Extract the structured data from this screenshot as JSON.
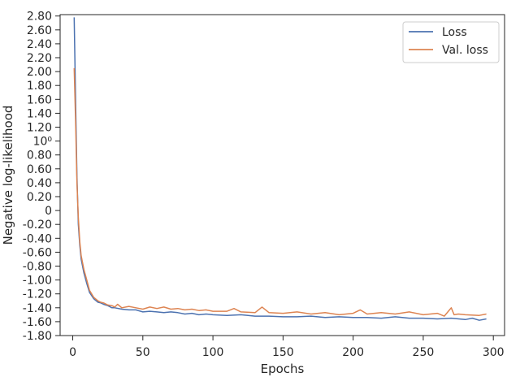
{
  "chart_data": {
    "type": "line",
    "xlabel": "Epochs",
    "ylabel": "Negative log-likelihood",
    "xlim": [
      -9,
      308
    ],
    "ylim": [
      -1.8,
      2.82
    ],
    "x_ticks": [
      {
        "value": 0,
        "label": "0"
      },
      {
        "value": 50,
        "label": "50"
      },
      {
        "value": 100,
        "label": "100"
      },
      {
        "value": 150,
        "label": "150"
      },
      {
        "value": 200,
        "label": "200"
      },
      {
        "value": 250,
        "label": "250"
      },
      {
        "value": 300,
        "label": "300"
      }
    ],
    "y_ticks": [
      {
        "value": 2.8,
        "label": "2.80"
      },
      {
        "value": 2.6,
        "label": "2.60"
      },
      {
        "value": 2.4,
        "label": "2.40"
      },
      {
        "value": 2.2,
        "label": "2.20"
      },
      {
        "value": 2.0,
        "label": "2.00"
      },
      {
        "value": 1.8,
        "label": "1.80"
      },
      {
        "value": 1.6,
        "label": "1.60"
      },
      {
        "value": 1.4,
        "label": "1.40"
      },
      {
        "value": 1.2,
        "label": "1.20"
      },
      {
        "value": 1.0,
        "label": "10⁰"
      },
      {
        "value": 0.8,
        "label": "0.80"
      },
      {
        "value": 0.6,
        "label": "0.60"
      },
      {
        "value": 0.4,
        "label": "0.40"
      },
      {
        "value": 0.2,
        "label": "0.20"
      },
      {
        "value": 0.0,
        "label": "0"
      },
      {
        "value": -0.2,
        "label": "-0.20"
      },
      {
        "value": -0.4,
        "label": "-0.40"
      },
      {
        "value": -0.6,
        "label": "-0.60"
      },
      {
        "value": -0.8,
        "label": "-0.80"
      },
      {
        "value": -1.0,
        "label": "-1.00"
      },
      {
        "value": -1.2,
        "label": "-1.20"
      },
      {
        "value": -1.4,
        "label": "-1.40"
      },
      {
        "value": -1.6,
        "label": "-1.60"
      },
      {
        "value": -1.8,
        "label": "-1.80"
      }
    ],
    "grid": false,
    "legend_position": "top-right",
    "series": [
      {
        "name": "Loss",
        "color": "#4c72b0",
        "x": [
          1,
          2,
          3,
          4,
          5,
          6,
          8,
          10,
          12,
          15,
          18,
          20,
          22,
          25,
          28,
          30,
          35,
          40,
          45,
          50,
          55,
          60,
          65,
          70,
          75,
          80,
          85,
          90,
          95,
          100,
          110,
          120,
          130,
          140,
          150,
          160,
          170,
          180,
          190,
          200,
          210,
          220,
          230,
          240,
          250,
          260,
          270,
          280,
          285,
          290,
          295
        ],
        "y": [
          2.78,
          1.6,
          0.5,
          -0.2,
          -0.5,
          -0.7,
          -0.9,
          -1.05,
          -1.18,
          -1.27,
          -1.32,
          -1.33,
          -1.35,
          -1.37,
          -1.4,
          -1.4,
          -1.42,
          -1.43,
          -1.43,
          -1.46,
          -1.45,
          -1.46,
          -1.47,
          -1.46,
          -1.47,
          -1.49,
          -1.48,
          -1.5,
          -1.49,
          -1.5,
          -1.51,
          -1.5,
          -1.52,
          -1.52,
          -1.53,
          -1.53,
          -1.52,
          -1.54,
          -1.53,
          -1.54,
          -1.54,
          -1.55,
          -1.53,
          -1.55,
          -1.55,
          -1.56,
          -1.55,
          -1.57,
          -1.55,
          -1.58,
          -1.56
        ]
      },
      {
        "name": "Val. loss",
        "color": "#dd8452",
        "x": [
          1,
          2,
          3,
          4,
          5,
          6,
          8,
          10,
          12,
          15,
          18,
          20,
          22,
          25,
          28,
          30,
          32,
          35,
          40,
          45,
          50,
          55,
          60,
          65,
          70,
          75,
          80,
          85,
          90,
          95,
          100,
          110,
          115,
          120,
          130,
          135,
          140,
          150,
          160,
          170,
          180,
          190,
          200,
          205,
          210,
          220,
          230,
          240,
          250,
          260,
          265,
          270,
          272,
          275,
          280,
          290,
          295
        ],
        "y": [
          2.05,
          1.3,
          0.4,
          -0.1,
          -0.45,
          -0.65,
          -0.85,
          -1.0,
          -1.15,
          -1.25,
          -1.3,
          -1.32,
          -1.33,
          -1.36,
          -1.37,
          -1.39,
          -1.35,
          -1.4,
          -1.38,
          -1.4,
          -1.42,
          -1.39,
          -1.41,
          -1.39,
          -1.42,
          -1.41,
          -1.43,
          -1.42,
          -1.44,
          -1.43,
          -1.45,
          -1.45,
          -1.41,
          -1.46,
          -1.47,
          -1.39,
          -1.47,
          -1.48,
          -1.46,
          -1.49,
          -1.47,
          -1.5,
          -1.48,
          -1.43,
          -1.49,
          -1.47,
          -1.49,
          -1.46,
          -1.5,
          -1.48,
          -1.52,
          -1.4,
          -1.5,
          -1.49,
          -1.5,
          -1.51,
          -1.49
        ]
      }
    ]
  }
}
